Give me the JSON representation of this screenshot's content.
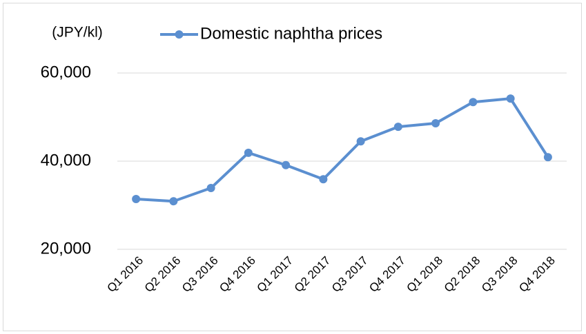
{
  "chart_data": {
    "type": "line",
    "y_label": "(JPY/kl)",
    "categories": [
      "Q1 2016",
      "Q2 2016",
      "Q3 2016",
      "Q4 2016",
      "Q1 2017",
      "Q2 2017",
      "Q3 2017",
      "Q4 2017",
      "Q1 2018",
      "Q2 2018",
      "Q3 2018",
      "Q4 2018"
    ],
    "series": [
      {
        "name": "Domestic naphtha prices",
        "color": "#5b8fd0",
        "values": [
          31400,
          30900,
          33900,
          41900,
          39100,
          35900,
          44500,
          47800,
          48600,
          53400,
          54200,
          40900
        ]
      }
    ],
    "ylim": [
      20000,
      60000
    ],
    "yticks": [
      {
        "value": 20000,
        "label": "20,000"
      },
      {
        "value": 40000,
        "label": "40,000"
      },
      {
        "value": 60000,
        "label": "60,000"
      }
    ],
    "grid": true,
    "legend": "top"
  }
}
